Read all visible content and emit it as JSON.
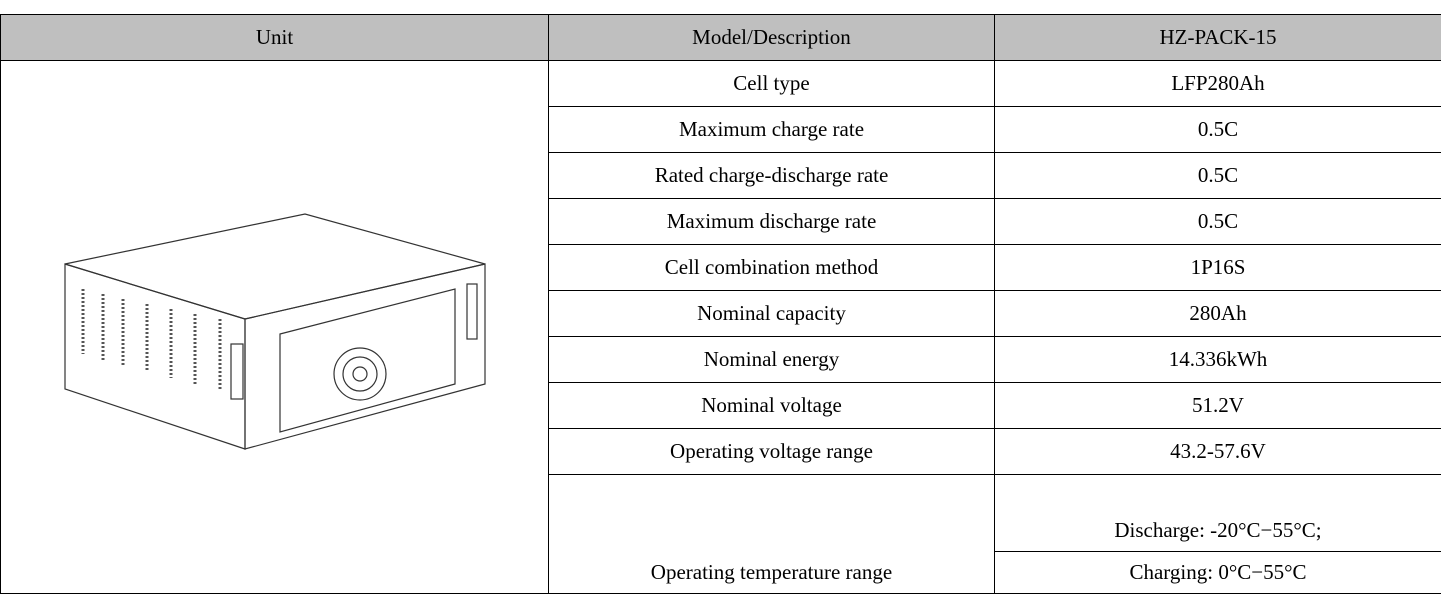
{
  "table": {
    "header": [
      "Unit",
      "Model/Description",
      "HZ-PACK-15"
    ],
    "rows": [
      [
        "Cell type",
        "LFP280Ah"
      ],
      [
        "Maximum charge rate",
        "0.5C"
      ],
      [
        "Rated charge-discharge rate",
        "0.5C"
      ],
      [
        "Maximum discharge rate",
        "0.5C"
      ],
      [
        "Cell combination method",
        "1P16S"
      ],
      [
        "Nominal capacity",
        "280Ah"
      ],
      [
        "Nominal energy",
        "14.336kWh"
      ],
      [
        "Nominal voltage",
        "51.2V"
      ],
      [
        "Operating voltage range",
        "43.2-57.6V"
      ]
    ],
    "temperature": {
      "label": "Operating temperature range",
      "values": [
        "Discharge: -20°C−55°C;",
        "Charging: 0°C−55°C"
      ]
    }
  }
}
